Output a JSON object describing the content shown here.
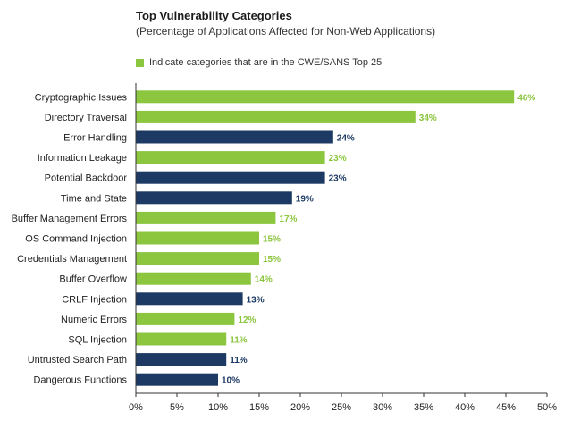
{
  "chart_data": {
    "type": "bar",
    "orientation": "horizontal",
    "title": "Top Vulnerability Categories",
    "subtitle": "(Percentage of Applications Affected for Non-Web Applications)",
    "legend": [
      {
        "label": "Indicate categories that are in the CWE/SANS Top 25",
        "color": "#8cc63f"
      }
    ],
    "categories": [
      "Cryptographic Issues",
      "Directory Traversal",
      "Error Handling",
      "Information Leakage",
      "Potential Backdoor",
      "Time and State",
      "Buffer Management Errors",
      "OS Command Injection",
      "Credentials Management",
      "Buffer Overflow",
      "CRLF Injection",
      "Numeric Errors",
      "SQL Injection",
      "Untrusted Search Path",
      "Dangerous Functions"
    ],
    "values": [
      46,
      34,
      24,
      23,
      23,
      19,
      17,
      15,
      15,
      14,
      13,
      12,
      11,
      11,
      10
    ],
    "value_labels": [
      "46%",
      "34%",
      "24%",
      "23%",
      "23%",
      "19%",
      "17%",
      "15%",
      "15%",
      "14%",
      "13%",
      "12%",
      "11%",
      "11%",
      "10%"
    ],
    "in_top25": [
      true,
      true,
      false,
      true,
      false,
      false,
      true,
      true,
      true,
      true,
      false,
      true,
      true,
      false,
      false
    ],
    "colors": {
      "top25": "#8cc63f",
      "other": "#1c3a64"
    },
    "xlim": [
      0,
      50
    ],
    "xticks": [
      0,
      5,
      10,
      15,
      20,
      25,
      30,
      35,
      40,
      45,
      50
    ],
    "xtick_labels": [
      "0%",
      "5%",
      "10%",
      "15%",
      "20%",
      "25%",
      "30%",
      "35%",
      "40%",
      "45%",
      "50%"
    ],
    "grid": false,
    "legend_position": "top-left"
  }
}
